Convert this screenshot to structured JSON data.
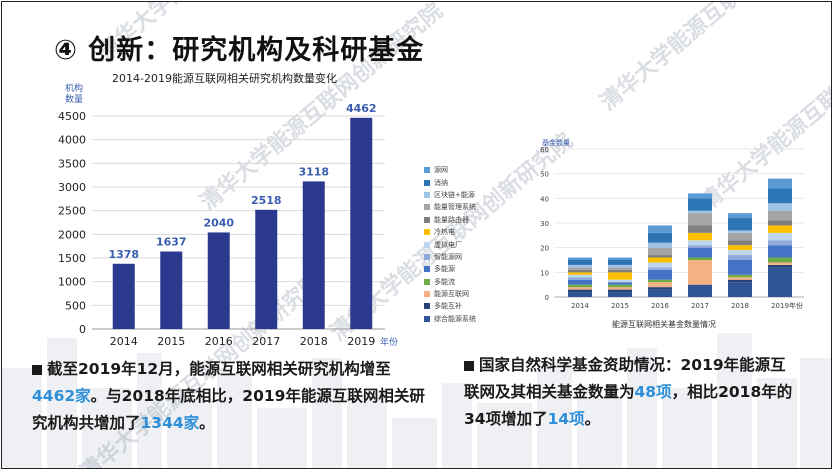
{
  "title": "④ 创新：研究机构及科研基金",
  "watermark": "清华大学能源互联网创新研究院",
  "left_chart": {
    "type": "bar",
    "title": "2014-2019能源互联网相关研究机构数量变化",
    "ylabel": "机构\n数量",
    "xlabel": "年份",
    "categories": [
      "2014",
      "2015",
      "2016",
      "2017",
      "2018",
      "2019"
    ],
    "values": [
      1378,
      1637,
      2040,
      2518,
      3118,
      4462
    ],
    "ylim": [
      0,
      4500
    ],
    "yticks": [
      "0",
      "500",
      "1000",
      "1500",
      "2000",
      "2500",
      "3000",
      "3500",
      "4000",
      "4500"
    ],
    "bar_color": "#2b3a8f",
    "label_color": "#3a5fb0",
    "grid": true
  },
  "right_chart": {
    "type": "bar",
    "stacked": true,
    "ylabel": "基金数量",
    "xlabel": "年份",
    "caption": "能源互联网相关基金数量情况",
    "categories": [
      "2014",
      "2015",
      "2016",
      "2017",
      "2018",
      "2019"
    ],
    "totals": [
      16,
      16,
      29,
      42,
      34,
      48
    ],
    "ylim": [
      0,
      60
    ],
    "yticks": [
      "0",
      "10",
      "20",
      "30",
      "40",
      "50",
      "60"
    ],
    "legend": [
      {
        "name": "源网",
        "color": "#5b9bd5"
      },
      {
        "name": "消纳",
        "color": "#2e75b6"
      },
      {
        "name": "区块链+能源",
        "color": "#9dc3e6"
      },
      {
        "name": "能量管理系统",
        "color": "#a5a5a5"
      },
      {
        "name": "能量路由器",
        "color": "#7f7f7f"
      },
      {
        "name": "冷热电",
        "color": "#ffc000"
      },
      {
        "name": "虚拟电厂",
        "color": "#bdd7ee"
      },
      {
        "name": "智能源网",
        "color": "#8faadc"
      },
      {
        "name": "多能源",
        "color": "#4472c4"
      },
      {
        "name": "多能流",
        "color": "#70ad47"
      },
      {
        "name": "能源互联网",
        "color": "#f4b183"
      },
      {
        "name": "多能互补",
        "color": "#264478"
      },
      {
        "name": "综合能源系统",
        "color": "#2f5597"
      }
    ],
    "stack_order": [
      "综合能源系统",
      "多能互补",
      "能源互联网",
      "多能流",
      "多能源",
      "智能源网",
      "虚拟电厂",
      "冷热电",
      "能量路由器",
      "能量管理系统",
      "区块链+能源",
      "消纳",
      "源网"
    ],
    "series": {
      "综合能源系统": [
        2,
        2,
        3,
        5,
        6,
        12
      ],
      "多能互补": [
        1,
        1,
        1,
        0,
        1,
        1
      ],
      "能源互联网": [
        1,
        1,
        2,
        10,
        1,
        1
      ],
      "多能流": [
        1,
        1,
        1,
        1,
        1,
        2
      ],
      "多能源": [
        2,
        1,
        4,
        4,
        6,
        5
      ],
      "智能源网": [
        1,
        0,
        1,
        1,
        2,
        2
      ],
      "虚拟电厂": [
        1,
        1,
        2,
        2,
        2,
        3
      ],
      "冷热电": [
        1,
        3,
        2,
        3,
        2,
        3
      ],
      "能量路由器": [
        1,
        1,
        1,
        3,
        2,
        2
      ],
      "能量管理系统": [
        1,
        1,
        3,
        5,
        3,
        4
      ],
      "区块链+能源": [
        1,
        1,
        2,
        1,
        1,
        3
      ],
      "消纳": [
        2,
        2,
        4,
        5,
        5,
        6
      ],
      "源网": [
        1,
        1,
        3,
        2,
        2,
        4
      ]
    }
  },
  "notes": {
    "left": {
      "p1": "截至2019年12月，能源互联网相关研究机构增至",
      "h1": "4462家",
      "p2": "。与2018年底相比，2019年能源互联网相关研究机构共增加了",
      "h2": "1344家",
      "p3": "。"
    },
    "right": {
      "p1": "国家自然科学基金资助情况：2019年能源互联网及其相关基金数量为",
      "h1": "48项",
      "p2": "，相比2018年的34项增加了",
      "h2": "14项",
      "p3": "。"
    }
  }
}
